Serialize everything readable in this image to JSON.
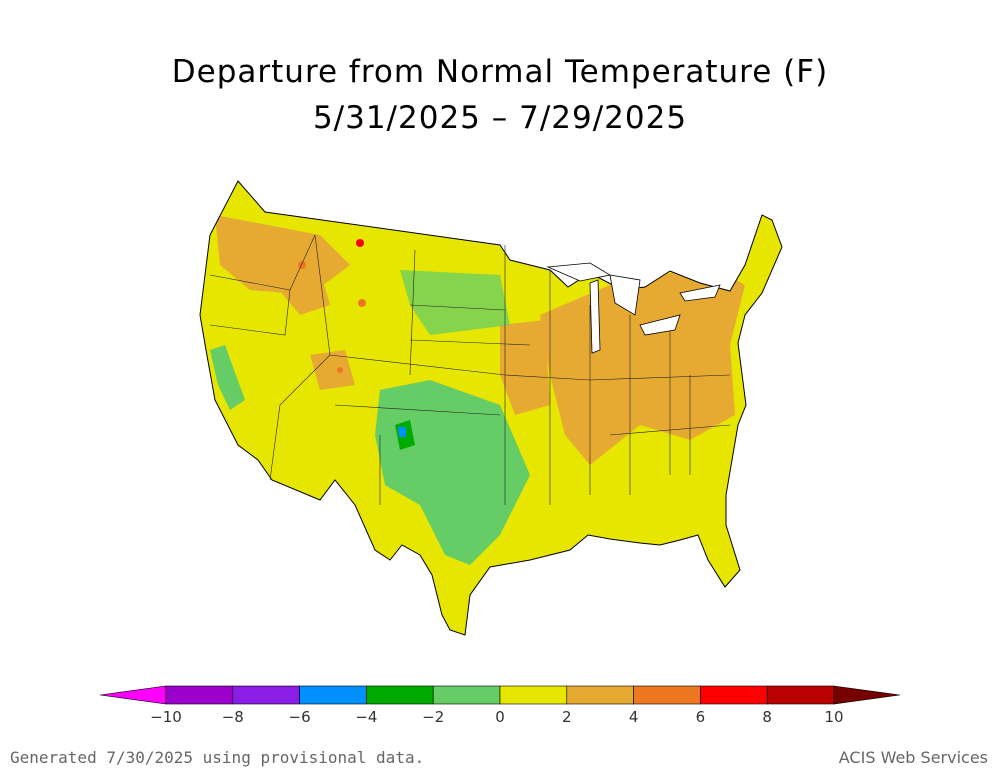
{
  "title_line1": "Departure from Normal Temperature (F)",
  "title_line2": "5/31/2025 – 7/29/2025",
  "footer_left": "Generated 7/30/2025 using provisional data.",
  "footer_right": "ACIS Web Services",
  "legend": {
    "colors": [
      "#ff00ff",
      "#9b00cc",
      "#8a1ee6",
      "#0090ff",
      "#00aa00",
      "#66cc66",
      "#e6e600",
      "#e6aa33",
      "#ee7722",
      "#ff0000",
      "#bb0000",
      "#770000"
    ],
    "ticks": [
      "−10",
      "−8",
      "−6",
      "−4",
      "−2",
      "0",
      "2",
      "4",
      "6",
      "8",
      "10"
    ]
  },
  "map_colors": {
    "water_outline": "#000000",
    "base": "#e6e600",
    "warm": "#e6aa33",
    "warmer": "#ee7722",
    "hot": "#ff0000",
    "cool": "#66cc66",
    "cooler": "#00aa00",
    "cold": "#0090ff"
  }
}
